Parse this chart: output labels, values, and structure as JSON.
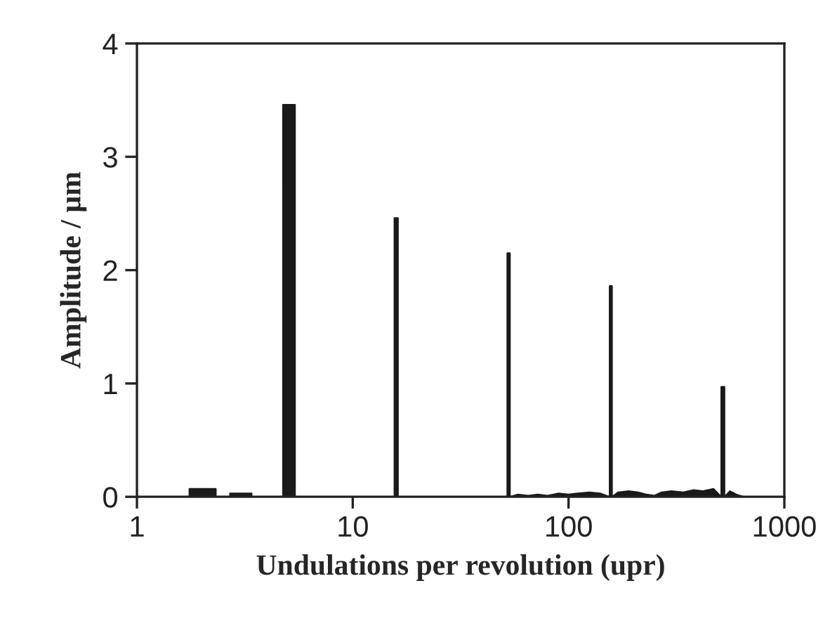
{
  "chart_data": {
    "type": "area",
    "xlabel": "Undulations per revolution (upr)",
    "ylabel": "Amplitude / µm",
    "log": "x",
    "grid": false,
    "legend": false,
    "xlim": [
      1,
      1000
    ],
    "xticks": [
      1,
      10,
      100,
      1000
    ],
    "ylim": [
      0,
      4
    ],
    "yticks": [
      0,
      1,
      2,
      3,
      4
    ],
    "series": [
      {
        "color": "#1a1a1a",
        "x": [
          1,
          1.75,
          1.75,
          2.32,
          2.32,
          2.7,
          2.7,
          3.4,
          3.4,
          4.75,
          4.75,
          5.4,
          5.4,
          15.6,
          15.6,
          16.2,
          16.2,
          52,
          52,
          53.5,
          53.5,
          58,
          65,
          72,
          80,
          90,
          100,
          110,
          125,
          140,
          155,
          155,
          159,
          159,
          170,
          190,
          210,
          230,
          250,
          270,
          300,
          340,
          380,
          420,
          470,
          510,
          510,
          528,
          528,
          560,
          600,
          650,
          1000
        ],
        "values": [
          0,
          0,
          0.07,
          0.07,
          0,
          0,
          0.03,
          0.03,
          0,
          0,
          3.46,
          3.46,
          0,
          0,
          2.46,
          2.46,
          0,
          0,
          2.15,
          2.15,
          0,
          0.02,
          0.01,
          0.02,
          0.01,
          0.03,
          0.02,
          0.03,
          0.04,
          0.03,
          0,
          1.86,
          1.86,
          0,
          0.04,
          0.05,
          0.04,
          0.02,
          0.01,
          0.04,
          0.05,
          0.04,
          0.06,
          0.05,
          0.07,
          0,
          0.97,
          0.97,
          0,
          0.05,
          0.02,
          0,
          0
        ]
      }
    ]
  }
}
